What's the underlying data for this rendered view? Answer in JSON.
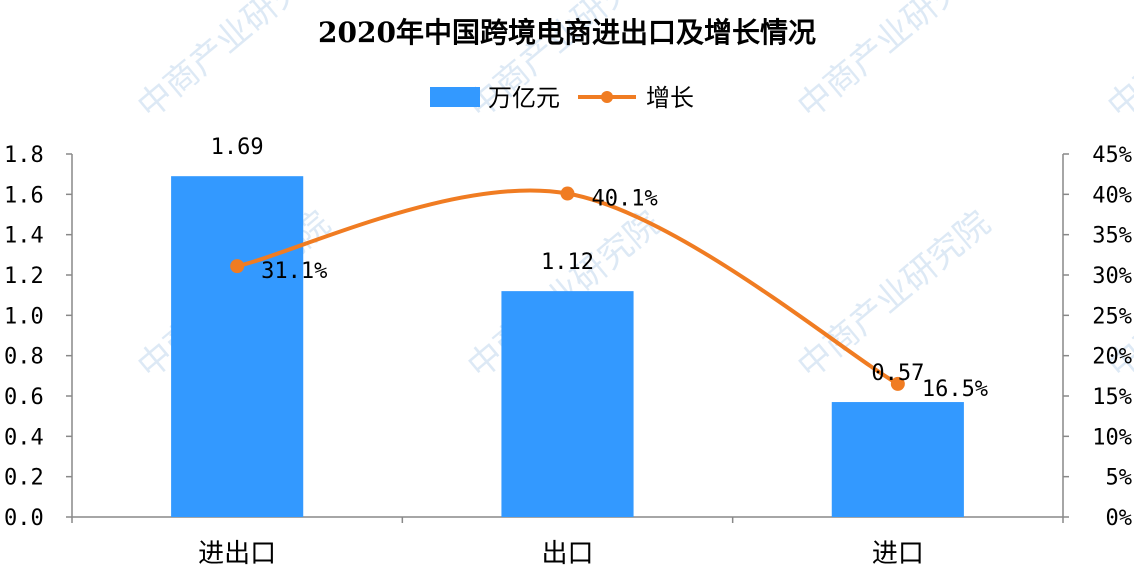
{
  "chart_data": {
    "type": "bar",
    "title": "2020年中国跨境电商进出口及增长情况",
    "categories": [
      "进出口",
      "出口",
      "进口"
    ],
    "series": [
      {
        "name": "万亿元",
        "kind": "bar",
        "axis": "left",
        "color": "#3399ff",
        "values": [
          1.69,
          1.12,
          0.57
        ],
        "labels": [
          "1.69",
          "1.12",
          "0.57"
        ]
      },
      {
        "name": "增长",
        "kind": "line",
        "axis": "right",
        "color": "#f07c22",
        "values": [
          0.311,
          0.401,
          0.165
        ],
        "labels": [
          "31.1%",
          "40.1%",
          "16.5%"
        ]
      }
    ],
    "y_left": {
      "range": [
        0,
        1.8
      ],
      "ticks": [
        "0.0",
        "0.2",
        "0.4",
        "0.6",
        "0.8",
        "1.0",
        "1.2",
        "1.4",
        "1.6",
        "1.8"
      ]
    },
    "y_right": {
      "range": [
        0,
        0.45
      ],
      "ticks": [
        "0%",
        "5%",
        "10%",
        "15%",
        "20%",
        "25%",
        "30%",
        "35%",
        "40%",
        "45%"
      ]
    },
    "legend": "top-center",
    "grid": false
  },
  "watermark": "中商产业研究院"
}
